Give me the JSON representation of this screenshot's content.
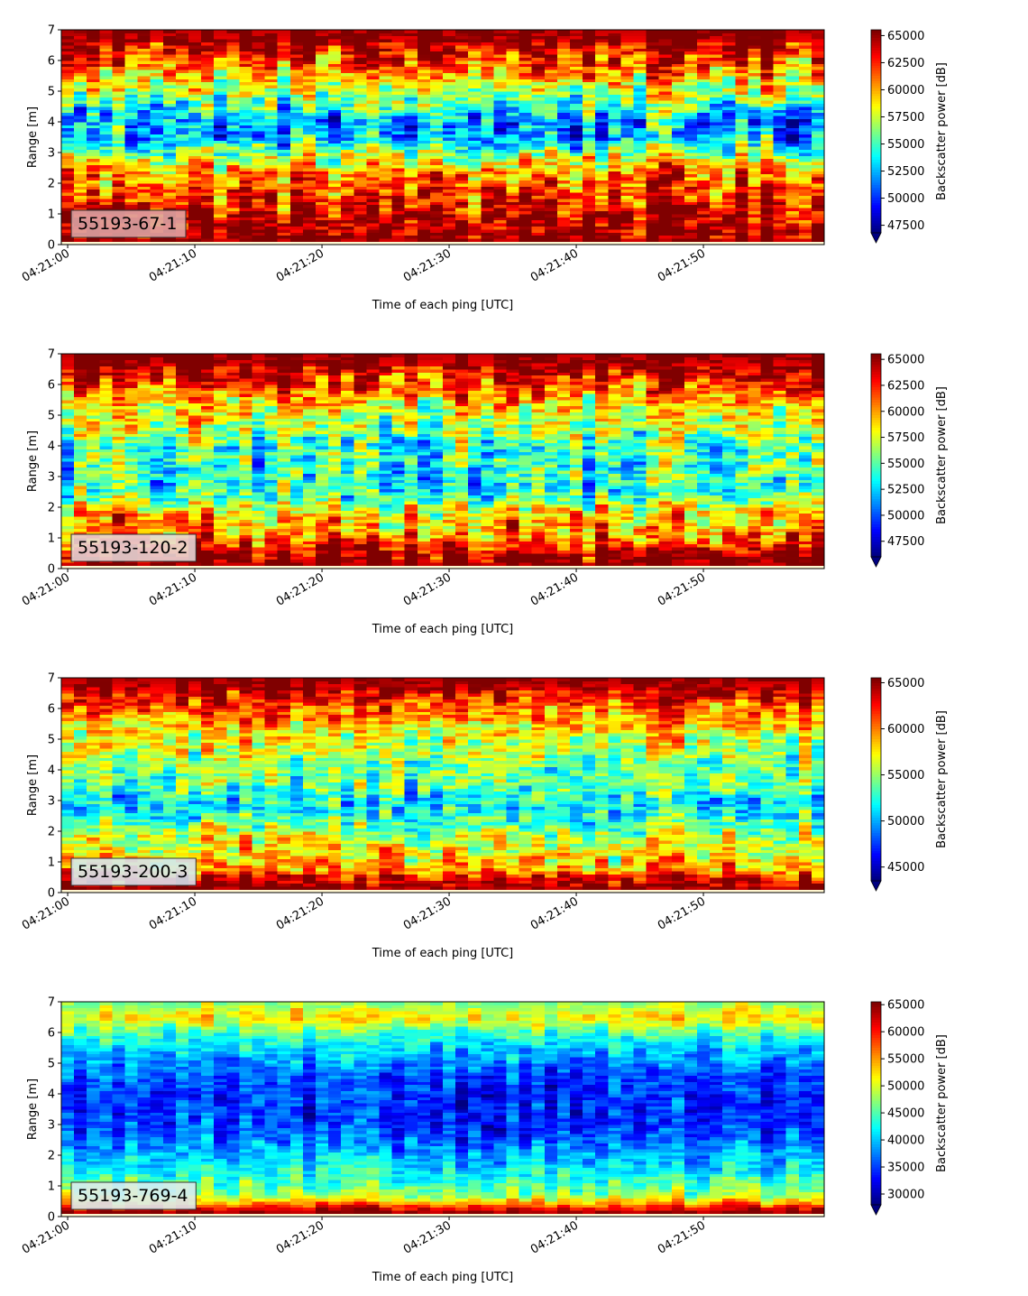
{
  "chart_data": [
    {
      "type": "heatmap",
      "panel_label": "55193-67-1",
      "label_box_color": "#dea6a6",
      "x_tick_labels": [
        "04:21:00",
        "04:21:10",
        "04:21:20",
        "04:21:30",
        "04:21:40",
        "04:21:50"
      ],
      "x_tick_seconds": [
        0,
        10,
        20,
        30,
        40,
        50
      ],
      "x_range_seconds": [
        -0.5,
        59.5
      ],
      "xlabel": "Time of each ping [UTC]",
      "ylabel": "Range [m]",
      "y_ticks": [
        0,
        1,
        2,
        3,
        4,
        5,
        6,
        7
      ],
      "ylim": [
        0,
        7
      ],
      "colorbar_label": "Backscatter power [dB]",
      "colorbar_ticks": [
        47500,
        50000,
        52500,
        55000,
        57500,
        60000,
        62500,
        65000
      ],
      "colorbar_range": [
        46800,
        65535
      ],
      "colorbar_extend": "min",
      "colormap": "jet",
      "profile": [
        {
          "y": 0.1,
          "v": 65535
        },
        {
          "y": 0.4,
          "v": 65535
        },
        {
          "y": 0.8,
          "v": 64500
        },
        {
          "y": 1.2,
          "v": 63500
        },
        {
          "y": 1.8,
          "v": 62000
        },
        {
          "y": 2.4,
          "v": 60500
        },
        {
          "y": 3.0,
          "v": 56500
        },
        {
          "y": 3.5,
          "v": 52500
        },
        {
          "y": 4.0,
          "v": 52000
        },
        {
          "y": 4.5,
          "v": 54500
        },
        {
          "y": 5.0,
          "v": 57500
        },
        {
          "y": 5.5,
          "v": 60000
        },
        {
          "y": 6.0,
          "v": 62500
        },
        {
          "y": 6.5,
          "v": 64500
        },
        {
          "y": 6.9,
          "v": 65535
        }
      ]
    },
    {
      "type": "heatmap",
      "panel_label": "55193-120-2",
      "label_box_color": "#e8d9d9",
      "x_tick_labels": [
        "04:21:00",
        "04:21:10",
        "04:21:20",
        "04:21:30",
        "04:21:40",
        "04:21:50"
      ],
      "x_tick_seconds": [
        0,
        10,
        20,
        30,
        40,
        50
      ],
      "x_range_seconds": [
        -0.5,
        59.5
      ],
      "xlabel": "Time of each ping [UTC]",
      "ylabel": "Range [m]",
      "y_ticks": [
        0,
        1,
        2,
        3,
        4,
        5,
        6,
        7
      ],
      "ylim": [
        0,
        7
      ],
      "colorbar_label": "Backscatter power [dB]",
      "colorbar_ticks": [
        47500,
        50000,
        52500,
        55000,
        57500,
        60000,
        62500,
        65000
      ],
      "colorbar_range": [
        46000,
        65535
      ],
      "colorbar_extend": "min",
      "colormap": "jet",
      "profile": [
        {
          "y": 0.1,
          "v": 65535
        },
        {
          "y": 0.4,
          "v": 65535
        },
        {
          "y": 0.8,
          "v": 62000
        },
        {
          "y": 1.2,
          "v": 60000
        },
        {
          "y": 1.8,
          "v": 59000
        },
        {
          "y": 2.3,
          "v": 55000
        },
        {
          "y": 2.8,
          "v": 53500
        },
        {
          "y": 3.5,
          "v": 54500
        },
        {
          "y": 4.0,
          "v": 54000
        },
        {
          "y": 4.5,
          "v": 56000
        },
        {
          "y": 5.0,
          "v": 57500
        },
        {
          "y": 5.5,
          "v": 59500
        },
        {
          "y": 6.0,
          "v": 62000
        },
        {
          "y": 6.5,
          "v": 64500
        },
        {
          "y": 6.9,
          "v": 65535
        }
      ]
    },
    {
      "type": "heatmap",
      "panel_label": "55193-200-3",
      "label_box_color": "#d6e6f3",
      "x_tick_labels": [
        "04:21:00",
        "04:21:10",
        "04:21:20",
        "04:21:30",
        "04:21:40",
        "04:21:50"
      ],
      "x_tick_seconds": [
        0,
        10,
        20,
        30,
        40,
        50
      ],
      "x_range_seconds": [
        -0.5,
        59.5
      ],
      "xlabel": "Time of each ping [UTC]",
      "ylabel": "Range [m]",
      "y_ticks": [
        0,
        1,
        2,
        3,
        4,
        5,
        6,
        7
      ],
      "ylim": [
        0,
        7
      ],
      "colorbar_label": "Backscatter power [dB]",
      "colorbar_ticks": [
        45000,
        50000,
        55000,
        60000,
        65000
      ],
      "colorbar_range": [
        43500,
        65535
      ],
      "colorbar_extend": "min",
      "colormap": "jet",
      "profile": [
        {
          "y": 0.1,
          "v": 65535
        },
        {
          "y": 0.4,
          "v": 64000
        },
        {
          "y": 0.8,
          "v": 59000
        },
        {
          "y": 1.2,
          "v": 58000
        },
        {
          "y": 1.8,
          "v": 56000
        },
        {
          "y": 2.4,
          "v": 53000
        },
        {
          "y": 2.9,
          "v": 51000
        },
        {
          "y": 3.5,
          "v": 54000
        },
        {
          "y": 4.0,
          "v": 54000
        },
        {
          "y": 4.5,
          "v": 55500
        },
        {
          "y": 5.0,
          "v": 56500
        },
        {
          "y": 5.5,
          "v": 58500
        },
        {
          "y": 6.0,
          "v": 61000
        },
        {
          "y": 6.5,
          "v": 63500
        },
        {
          "y": 6.9,
          "v": 65535
        }
      ]
    },
    {
      "type": "heatmap",
      "panel_label": "55193-769-4",
      "label_box_color": "#dcecf3",
      "x_tick_labels": [
        "04:21:00",
        "04:21:10",
        "04:21:20",
        "04:21:30",
        "04:21:40",
        "04:21:50"
      ],
      "x_tick_seconds": [
        0,
        10,
        20,
        30,
        40,
        50
      ],
      "x_range_seconds": [
        -0.5,
        59.5
      ],
      "xlabel": "Time of each ping [UTC]",
      "ylabel": "Range [m]",
      "y_ticks": [
        0,
        1,
        2,
        3,
        4,
        5,
        6,
        7
      ],
      "ylim": [
        0,
        7
      ],
      "colorbar_label": "Backscatter power [dB]",
      "colorbar_ticks": [
        30000,
        35000,
        40000,
        45000,
        50000,
        55000,
        60000,
        65000
      ],
      "colorbar_range": [
        28000,
        65535
      ],
      "colorbar_extend": "min",
      "colormap": "jet",
      "profile": [
        {
          "y": 0.1,
          "v": 65535
        },
        {
          "y": 0.3,
          "v": 60000
        },
        {
          "y": 0.7,
          "v": 47000
        },
        {
          "y": 1.2,
          "v": 44000
        },
        {
          "y": 1.8,
          "v": 40000
        },
        {
          "y": 2.4,
          "v": 37000
        },
        {
          "y": 3.0,
          "v": 34500
        },
        {
          "y": 3.5,
          "v": 34000
        },
        {
          "y": 4.0,
          "v": 34000
        },
        {
          "y": 4.5,
          "v": 35000
        },
        {
          "y": 5.0,
          "v": 37500
        },
        {
          "y": 5.5,
          "v": 40000
        },
        {
          "y": 6.0,
          "v": 45000
        },
        {
          "y": 6.5,
          "v": 52000
        },
        {
          "y": 6.9,
          "v": 47000
        }
      ]
    }
  ]
}
